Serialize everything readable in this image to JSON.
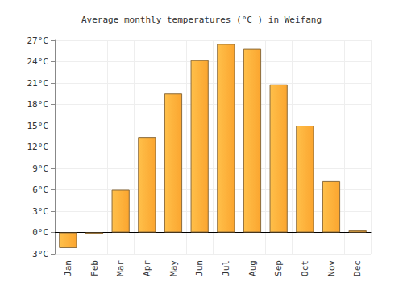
{
  "chart_data": {
    "type": "bar",
    "title": "Average monthly temperatures (°C ) in Weifang",
    "categories": [
      "Jan",
      "Feb",
      "Mar",
      "Apr",
      "May",
      "Jun",
      "Jul",
      "Aug",
      "Sep",
      "Oct",
      "Nov",
      "Dec"
    ],
    "values": [
      -2.2,
      -0.2,
      6.0,
      13.4,
      19.5,
      24.2,
      26.5,
      25.8,
      20.8,
      15.0,
      7.2,
      0.3
    ],
    "color": "#fba52f",
    "ylim": [
      -3,
      27
    ],
    "yticks": [
      {
        "value": -3,
        "label": "-3°C"
      },
      {
        "value": 0,
        "label": "0°C"
      },
      {
        "value": 3,
        "label": "3°C"
      },
      {
        "value": 6,
        "label": "6°C"
      },
      {
        "value": 9,
        "label": "9°C"
      },
      {
        "value": 12,
        "label": "12°C"
      },
      {
        "value": 15,
        "label": "15°C"
      },
      {
        "value": 18,
        "label": "18°C"
      },
      {
        "value": 21,
        "label": "21°C"
      },
      {
        "value": 24,
        "label": "24°C"
      },
      {
        "value": 27,
        "label": "27°C"
      }
    ],
    "grid": true
  }
}
